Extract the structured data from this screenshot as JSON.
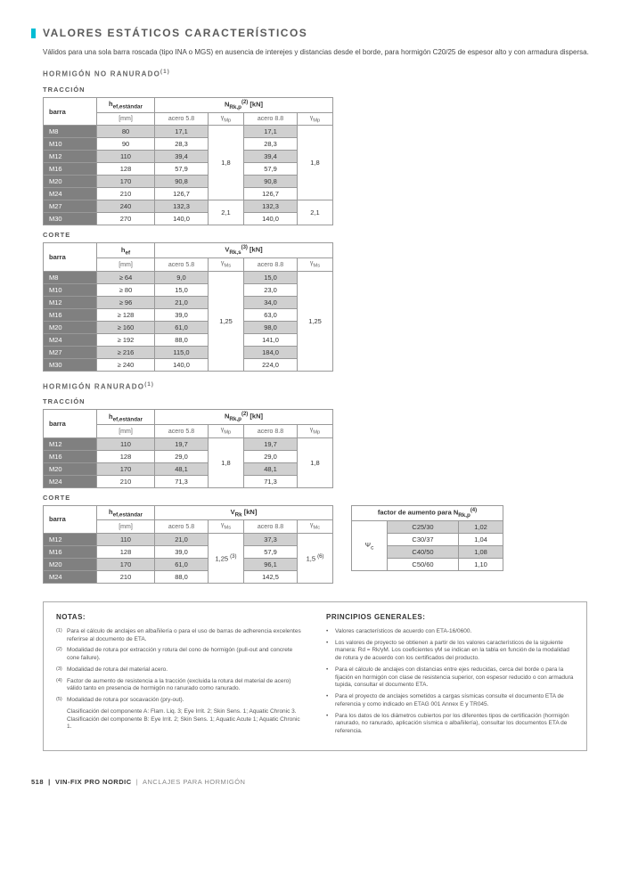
{
  "title": "VALORES ESTÁTICOS CARACTERÍSTICOS",
  "intro": "Válidos para una sola barra roscada (tipo INA o MGS) en ausencia de interejes y distancias desde el borde, para hormigón C20/25 de espesor alto y con armadura dispersa.",
  "sec1": "HORMIGÓN NO RANURADO",
  "sec2": "HORMIGÓN RANURADO",
  "sub_trac": "TRACCIÓN",
  "sub_corte": "CORTE",
  "hdr": {
    "barra": "barra",
    "hef_std": "hef,estándar",
    "hef": "hef",
    "nrkp": "NRk,p",
    "vrks": "VRk,s",
    "vrk": "VRk",
    "kn": "[kN]",
    "mm": "[mm]",
    "a58": "acero 5.8",
    "a88": "acero 8.8",
    "gmp": "γMp",
    "gms": "γMs",
    "gmc": "γMc",
    "factor": "factor de aumento para NRk,p",
    "psic": "Ψc"
  },
  "t1": {
    "rows": [
      {
        "b": "M8",
        "h": "80",
        "v58": "17,1",
        "v88": "17,1"
      },
      {
        "b": "M10",
        "h": "90",
        "v58": "28,3",
        "v88": "28,3"
      },
      {
        "b": "M12",
        "h": "110",
        "v58": "39,4",
        "v88": "39,4"
      },
      {
        "b": "M16",
        "h": "128",
        "v58": "57,9",
        "v88": "57,9"
      },
      {
        "b": "M20",
        "h": "170",
        "v58": "90,8",
        "v88": "90,8"
      },
      {
        "b": "M24",
        "h": "210",
        "v58": "126,7",
        "v88": "126,7"
      },
      {
        "b": "M27",
        "h": "240",
        "v58": "132,3",
        "v88": "132,3"
      },
      {
        "b": "M30",
        "h": "270",
        "v58": "140,0",
        "v88": "140,0"
      }
    ],
    "g1": "1,8",
    "g2": "2,1"
  },
  "t2": {
    "rows": [
      {
        "b": "M8",
        "h": "≥ 64",
        "v58": "9,0",
        "v88": "15,0"
      },
      {
        "b": "M10",
        "h": "≥ 80",
        "v58": "15,0",
        "v88": "23,0"
      },
      {
        "b": "M12",
        "h": "≥ 96",
        "v58": "21,0",
        "v88": "34,0"
      },
      {
        "b": "M16",
        "h": "≥ 128",
        "v58": "39,0",
        "v88": "63,0"
      },
      {
        "b": "M20",
        "h": "≥ 160",
        "v58": "61,0",
        "v88": "98,0"
      },
      {
        "b": "M24",
        "h": "≥ 192",
        "v58": "88,0",
        "v88": "141,0"
      },
      {
        "b": "M27",
        "h": "≥ 216",
        "v58": "115,0",
        "v88": "184,0"
      },
      {
        "b": "M30",
        "h": "≥ 240",
        "v58": "140,0",
        "v88": "224,0"
      }
    ],
    "g": "1,25"
  },
  "t3": {
    "rows": [
      {
        "b": "M12",
        "h": "110",
        "v58": "19,7",
        "v88": "19,7"
      },
      {
        "b": "M16",
        "h": "128",
        "v58": "29,0",
        "v88": "29,0"
      },
      {
        "b": "M20",
        "h": "170",
        "v58": "48,1",
        "v88": "48,1"
      },
      {
        "b": "M24",
        "h": "210",
        "v58": "71,3",
        "v88": "71,3"
      }
    ],
    "g": "1,8"
  },
  "t4": {
    "rows": [
      {
        "b": "M12",
        "h": "110",
        "v58": "21,0",
        "v88": "37,3"
      },
      {
        "b": "M16",
        "h": "128",
        "v58": "39,0",
        "v88": "57,9"
      },
      {
        "b": "M20",
        "h": "170",
        "v58": "61,0",
        "v88": "96,1"
      },
      {
        "b": "M24",
        "h": "210",
        "v58": "88,0",
        "v88": "142,5"
      }
    ],
    "g1": "1,25",
    "g2": "1,5",
    "g1n": "(3)",
    "g2n": "(6)"
  },
  "factor": {
    "rows": [
      {
        "c": "C25/30",
        "v": "1,02"
      },
      {
        "c": "C30/37",
        "v": "1,04"
      },
      {
        "c": "C40/50",
        "v": "1,08"
      },
      {
        "c": "C50/60",
        "v": "1,10"
      }
    ],
    "sup": "(4)"
  },
  "notes": {
    "title": "NOTAS:",
    "items": [
      {
        "n": "(1)",
        "t": "Para el cálculo de anclajes en albañilería o para el uso de barras de adherencia excelentes referirse al documento de ETA."
      },
      {
        "n": "(2)",
        "t": "Modalidad de rotura por extracción y rotura del cono de hormigón (pull-out and concrete cone failure)."
      },
      {
        "n": "(3)",
        "t": "Modalidad de rotura del material acero."
      },
      {
        "n": "(4)",
        "t": "Factor de aumento de resistencia a la tracción (excluida la rotura del material de acero) válido tanto en presencia de hormigón no ranurado como ranurado."
      },
      {
        "n": "(5)",
        "t": "Modalidad de rotura por socavación (pry-out)."
      },
      {
        "n": "",
        "t": "Clasificación del componente A: Flam. Liq. 3; Eye Irrit. 2; Skin Sens. 1; Aquatic Chronic 3. Clasificación del componente B: Eye Irrit. 2; Skin Sens. 1; Aquatic Acute 1; Aquatic Chronic 1."
      }
    ]
  },
  "principles": {
    "title": "PRINCIPIOS GENERALES:",
    "items": [
      "Valores característicos de acuerdo con ETA-16/0600.",
      "Los valores de proyecto se obtienen a partir de los valores característicos de la siguiente manera: Rd = Rk/γM. Los coeficientes γM se indican en la tabla en función de la modalidad de rotura y de acuerdo con los certificados del producto.",
      "Para el cálculo de anclajes con distancias entre ejes reducidas, cerca del borde o para la fijación en hormigón con clase de resistencia superior, con espesor reducido o con armadura tupida, consultar el documento ETA.",
      "Para el proyecto de anclajes sometidos a cargas sísmicas consulte el documento ETA de referencia y como indicado en ETAG 001 Annex E y TR045.",
      "Para los datos de los diámetros cubiertos por los diferentes tipos de certificación (hormigón ranurado, no ranurado, aplicación sísmica o albañilería), consultar los documentos ETA de referencia."
    ]
  },
  "footer": {
    "pg": "518",
    "prod": "VIN-FIX PRO NORDIC",
    "cat": "ANCLAJES PARA HORMIGÓN"
  }
}
